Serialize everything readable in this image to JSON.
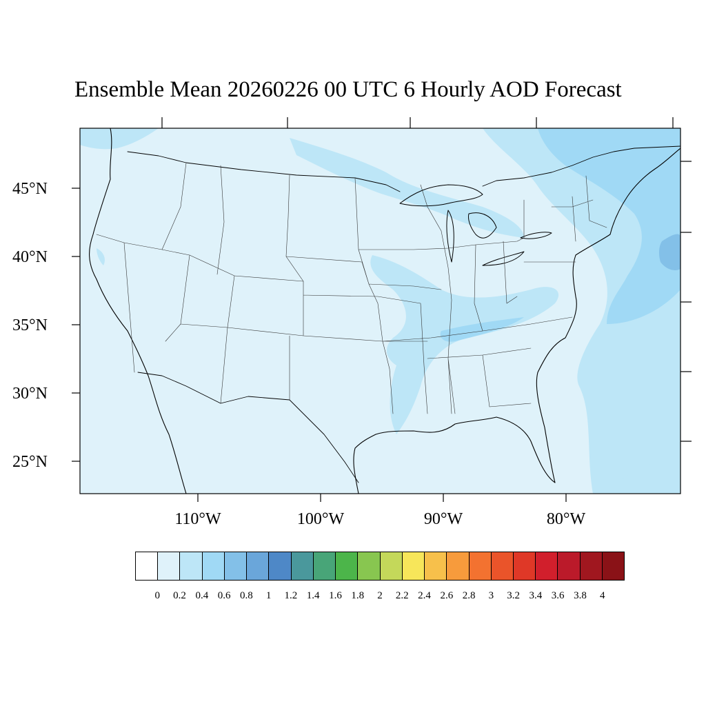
{
  "title": "Ensemble Mean 20260226 00 UTC 6 Hourly AOD Forecast",
  "map": {
    "latitude_labels": [
      "45°N",
      "40°N",
      "35°N",
      "30°N",
      "25°N"
    ],
    "longitude_labels": [
      "110°W",
      "100°W",
      "90°W",
      "80°W"
    ],
    "background_fill": "#dff2fa",
    "features": [
      "coastlines",
      "state-boundaries",
      "country-boundaries",
      "great-lakes"
    ]
  },
  "chart_data": {
    "type": "heatmap",
    "title": "Ensemble Mean 20260226 00 UTC 6 Hourly AOD Forecast",
    "latitudes": [
      "45°N",
      "40°N",
      "35°N",
      "30°N",
      "25°N"
    ],
    "longitudes": [
      "110°W",
      "100°W",
      "90°W",
      "80°W"
    ],
    "dominant_range": [
      0,
      0.2
    ],
    "max_range": [
      0.6,
      0.8
    ],
    "regions": [
      {
        "area": "most of CONUS and Gulf of Mexico",
        "aod_range": [
          0,
          0.2
        ]
      },
      {
        "area": "upper Midwest / northern plains band",
        "aod_range": [
          0.2,
          0.4
        ]
      },
      {
        "area": "Ohio Valley to Tennessee / Mississippi band",
        "aod_range": [
          0.2,
          0.4
        ]
      },
      {
        "area": "western Atlantic off the East Coast",
        "aod_range": [
          0.4,
          0.6
        ]
      },
      {
        "area": "offshore New England plume core",
        "aod_range": [
          0.6,
          0.8
        ]
      }
    ]
  },
  "colorbar": {
    "labels": [
      "0",
      "0.2",
      "0.4",
      "0.6",
      "0.8",
      "1",
      "1.2",
      "1.4",
      "1.6",
      "1.8",
      "2",
      "2.2",
      "2.4",
      "2.6",
      "2.8",
      "3",
      "3.2",
      "3.4",
      "3.6",
      "3.8",
      "4"
    ],
    "colors": [
      "#ffffff",
      "#dff2fa",
      "#bde6f7",
      "#a0d9f5",
      "#83c0e8",
      "#6aa6da",
      "#4e88c7",
      "#4a989c",
      "#48a578",
      "#4cb54a",
      "#88c650",
      "#c4d85a",
      "#f7e65a",
      "#f7c04b",
      "#f79b3c",
      "#f37230",
      "#ea542a",
      "#df3827",
      "#d11f2c",
      "#bb1a2a",
      "#a0171f",
      "#8a1217"
    ]
  }
}
